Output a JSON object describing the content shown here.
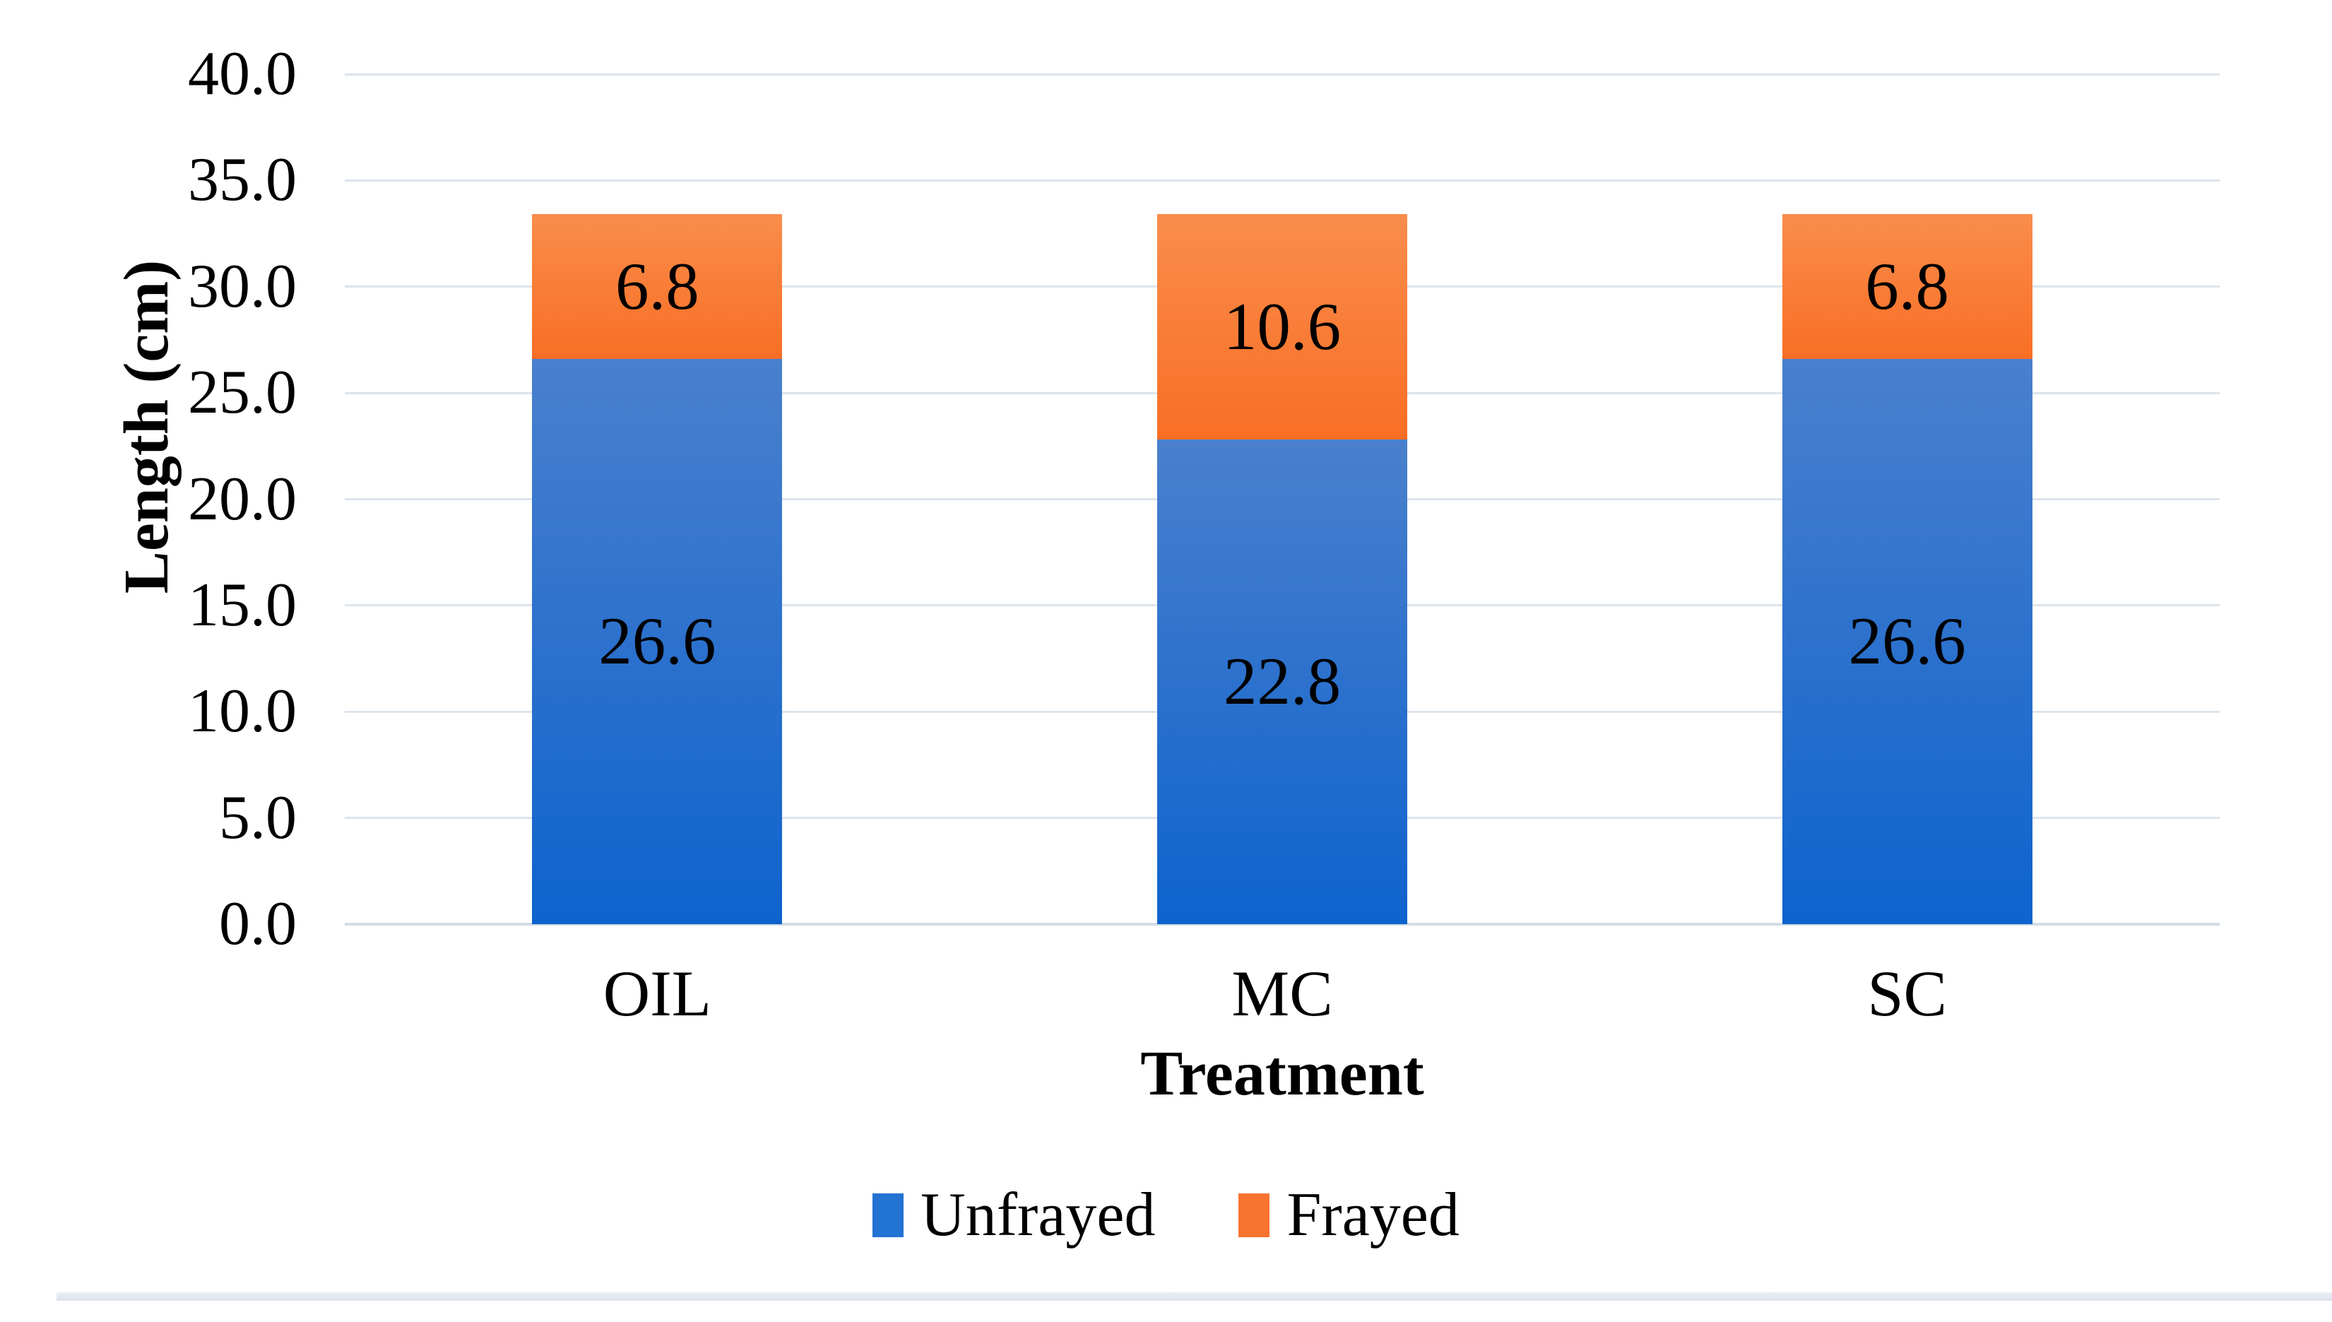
{
  "chart_data": {
    "type": "bar",
    "stacked": true,
    "title": "",
    "categories": [
      "OIL",
      "MC",
      "SC"
    ],
    "series": [
      {
        "name": "Unfrayed",
        "values": [
          26.6,
          22.8,
          26.6
        ],
        "labels": [
          "26.6",
          "22.8",
          "26.6"
        ],
        "color_top": "#4a80cd",
        "color_bottom": "#0e63cd",
        "legend_color": "#2273d3"
      },
      {
        "name": "Frayed",
        "values": [
          6.8,
          10.6,
          6.8
        ],
        "labels": [
          "6.8",
          "10.6",
          "6.8"
        ],
        "color_top": "#f98d4b",
        "color_bottom": "#f96e25",
        "legend_color": "#f97330"
      }
    ],
    "xlabel": "Treatment",
    "ylabel": "Length (cm)",
    "ylim": [
      0,
      40
    ],
    "ytick_step": 5,
    "ytick_labels": [
      "0.0",
      "5.0",
      "10.0",
      "15.0",
      "20.0",
      "25.0",
      "30.0",
      "35.0",
      "40.0"
    ],
    "grid": true,
    "gridline_color": "#dde4ed",
    "axisline_color": "#d3dce6",
    "legend_position": "bottom",
    "data_labels": true,
    "text_color": "#000000"
  }
}
